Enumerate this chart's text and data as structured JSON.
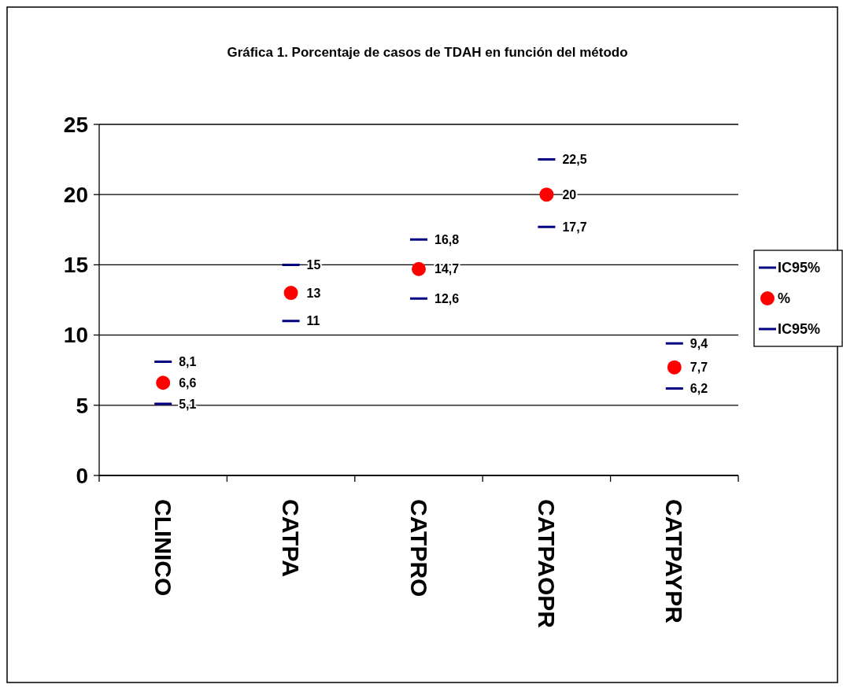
{
  "chart_data": {
    "type": "scatter",
    "title": "Gráfica 1. Porcentaje de casos de TDAH en función del método",
    "categories": [
      "CLINICO",
      "CATPA",
      "CATPRO",
      "CATPAOPR",
      "CATPAYPR"
    ],
    "series": [
      {
        "name": "%",
        "color": "#ff0000",
        "marker": "circle",
        "values": [
          6.6,
          13,
          14.7,
          20,
          7.7
        ],
        "value_labels": [
          "6,6",
          "13",
          "14,7",
          "20",
          "7,7"
        ],
        "errors": [
          [
            5.1,
            8.1
          ],
          [
            11,
            15
          ],
          [
            12.6,
            16.8
          ],
          [
            17.7,
            22.5
          ],
          [
            6.2,
            9.4
          ]
        ]
      }
    ],
    "annotations": [
      "IC95%",
      "IC95%",
      {
        "text": "8,1",
        "x": "CLINICO",
        "y": 8.1
      },
      {
        "text": "5,1",
        "x": "CLINICO",
        "y": 5.1
      },
      {
        "text": "15",
        "x": "CATPA",
        "y": 15
      },
      {
        "text": "11",
        "x": "CATPA",
        "y": 11
      },
      {
        "text": "16,8",
        "x": "CATPRO",
        "y": 16.8
      },
      {
        "text": "12,6",
        "x": "CATPRO",
        "y": 12.6
      },
      {
        "text": "22,5",
        "x": "CATPAOPR",
        "y": 22.5
      },
      {
        "text": "17,7",
        "x": "CATPAOPR",
        "y": 17.7
      },
      {
        "text": "9,4",
        "x": "CATPAYPR",
        "y": 9.4
      },
      {
        "text": "6,2",
        "x": "CATPAYPR",
        "y": 6.2
      }
    ],
    "ylim": [
      0,
      25
    ],
    "yticks": [
      0,
      5,
      10,
      15,
      20,
      25
    ],
    "grid": "y",
    "legend": "right",
    "data_labels": true
  }
}
